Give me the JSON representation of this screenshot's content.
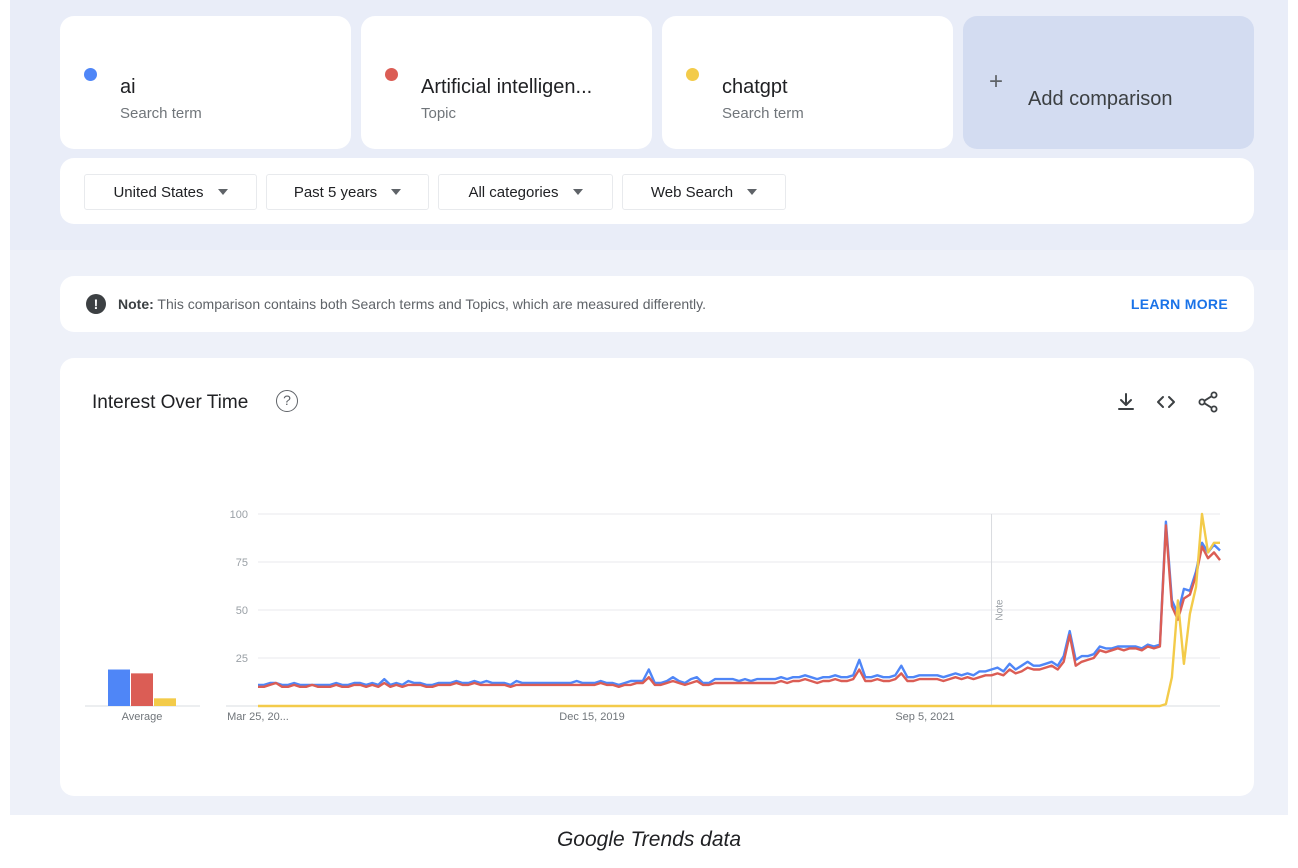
{
  "terms": [
    {
      "name": "ai",
      "type": "Search term",
      "color": "#4f86f7"
    },
    {
      "name": "Artificial intelligen...",
      "type": "Topic",
      "color": "#db5d55"
    },
    {
      "name": "chatgpt",
      "type": "Search term",
      "color": "#f3cb4a"
    }
  ],
  "add_comparison": {
    "icon": "plus-icon",
    "label": "Add comparison"
  },
  "filters": {
    "region": "United States",
    "time": "Past 5 years",
    "category": "All categories",
    "search_type": "Web Search"
  },
  "note": {
    "prefix": "Note:",
    "text": " This comparison contains both Search terms and Topics, which are measured differently.",
    "link": "LEARN MORE"
  },
  "chart_section": {
    "title": "Interest Over Time",
    "tools": [
      "download-icon",
      "embed-icon",
      "share-icon"
    ]
  },
  "caption": "Google Trends data",
  "chart_data": {
    "type": "line",
    "ylim": [
      0,
      100
    ],
    "yticks": [
      25,
      50,
      75,
      100
    ],
    "x_tick_labels": [
      "Mar 25, 20...",
      "Dec 15, 2019",
      "Sep 5, 2021"
    ],
    "annotation": "Note",
    "grid": true,
    "averages": {
      "label": "Average",
      "values": [
        19,
        17,
        4
      ]
    },
    "series": [
      {
        "color": "#4f86f7",
        "values": [
          11,
          11,
          12,
          12,
          11,
          11,
          12,
          11,
          11,
          11,
          11,
          11,
          11,
          12,
          11,
          11,
          12,
          12,
          11,
          12,
          11,
          14,
          11,
          12,
          11,
          13,
          12,
          12,
          11,
          11,
          12,
          12,
          12,
          13,
          12,
          12,
          13,
          12,
          13,
          12,
          12,
          12,
          11,
          13,
          12,
          12,
          12,
          12,
          12,
          12,
          12,
          12,
          12,
          13,
          12,
          12,
          12,
          13,
          12,
          12,
          11,
          12,
          13,
          13,
          13,
          19,
          12,
          12,
          13,
          15,
          13,
          12,
          14,
          15,
          12,
          12,
          14,
          14,
          14,
          14,
          13,
          14,
          13,
          14,
          14,
          14,
          14,
          15,
          14,
          15,
          15,
          16,
          15,
          14,
          15,
          15,
          16,
          15,
          15,
          16,
          24,
          15,
          15,
          16,
          15,
          15,
          16,
          21,
          15,
          15,
          16,
          16,
          16,
          16,
          15,
          16,
          17,
          16,
          17,
          16,
          18,
          18,
          19,
          20,
          18,
          22,
          19,
          21,
          23,
          21,
          21,
          22,
          23,
          21,
          26,
          39,
          24,
          26,
          26,
          27,
          31,
          30,
          30,
          31,
          31,
          31,
          31,
          30,
          32,
          31,
          32,
          96,
          55,
          48,
          61,
          60,
          70,
          85,
          80,
          84,
          81
        ]
      },
      {
        "color": "#db5d55",
        "values": [
          10,
          10,
          11,
          12,
          10,
          10,
          11,
          10,
          10,
          11,
          10,
          10,
          10,
          11,
          10,
          10,
          11,
          11,
          10,
          11,
          10,
          12,
          10,
          11,
          10,
          11,
          11,
          11,
          10,
          10,
          11,
          11,
          11,
          12,
          11,
          11,
          12,
          11,
          11,
          11,
          11,
          11,
          10,
          11,
          11,
          11,
          11,
          11,
          11,
          11,
          11,
          11,
          11,
          11,
          11,
          11,
          11,
          12,
          11,
          11,
          10,
          11,
          11,
          12,
          12,
          15,
          11,
          11,
          12,
          13,
          12,
          11,
          12,
          13,
          11,
          11,
          12,
          12,
          12,
          12,
          12,
          12,
          12,
          12,
          12,
          12,
          12,
          13,
          12,
          13,
          13,
          14,
          13,
          12,
          13,
          13,
          14,
          13,
          13,
          14,
          19,
          13,
          13,
          14,
          13,
          13,
          14,
          17,
          13,
          13,
          14,
          14,
          14,
          14,
          13,
          14,
          15,
          14,
          15,
          14,
          15,
          16,
          16,
          17,
          16,
          19,
          17,
          18,
          20,
          19,
          19,
          20,
          21,
          19,
          23,
          37,
          21,
          23,
          24,
          25,
          29,
          28,
          29,
          30,
          29,
          30,
          30,
          29,
          31,
          30,
          31,
          94,
          52,
          45,
          56,
          58,
          68,
          83,
          77,
          80,
          76
        ]
      },
      {
        "color": "#f3cb4a",
        "values": [
          0,
          0,
          0,
          0,
          0,
          0,
          0,
          0,
          0,
          0,
          0,
          0,
          0,
          0,
          0,
          0,
          0,
          0,
          0,
          0,
          0,
          0,
          0,
          0,
          0,
          0,
          0,
          0,
          0,
          0,
          0,
          0,
          0,
          0,
          0,
          0,
          0,
          0,
          0,
          0,
          0,
          0,
          0,
          0,
          0,
          0,
          0,
          0,
          0,
          0,
          0,
          0,
          0,
          0,
          0,
          0,
          0,
          0,
          0,
          0,
          0,
          0,
          0,
          0,
          0,
          0,
          0,
          0,
          0,
          0,
          0,
          0,
          0,
          0,
          0,
          0,
          0,
          0,
          0,
          0,
          0,
          0,
          0,
          0,
          0,
          0,
          0,
          0,
          0,
          0,
          0,
          0,
          0,
          0,
          0,
          0,
          0,
          0,
          0,
          0,
          0,
          0,
          0,
          0,
          0,
          0,
          0,
          0,
          0,
          0,
          0,
          0,
          0,
          0,
          0,
          0,
          0,
          0,
          0,
          0,
          0,
          0,
          0,
          0,
          0,
          0,
          0,
          0,
          0,
          0,
          0,
          0,
          0,
          0,
          0,
          0,
          0,
          0,
          0,
          0,
          0,
          0,
          0,
          0,
          0,
          0,
          0,
          0,
          0,
          0,
          0,
          1,
          15,
          55,
          22,
          48,
          62,
          100,
          80,
          85,
          85
        ]
      }
    ]
  }
}
